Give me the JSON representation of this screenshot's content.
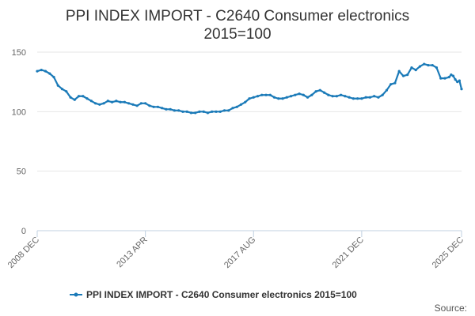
{
  "chart_data": {
    "type": "line",
    "title": "PPI INDEX IMPORT - C2640 Consumer electronics",
    "subtitle": "2015=100",
    "xlabel": "",
    "ylabel": "",
    "ylim": [
      0,
      150
    ],
    "yticks": [
      0,
      50,
      100,
      150
    ],
    "x_range": [
      "2008 DEC",
      "2025 DEC"
    ],
    "x_ticks": [
      "2008 DEC",
      "2013 APR",
      "2017 AUG",
      "2021 DEC",
      "2025 DEC"
    ],
    "grid": "horizontal",
    "legend_position": "bottom",
    "series": [
      {
        "name": "PPI INDEX IMPORT - C2640 Consumer electronics 2015=100",
        "color": "#1a7ab8",
        "points": [
          [
            "2008-12",
            134
          ],
          [
            "2009-02",
            135
          ],
          [
            "2009-04",
            134
          ],
          [
            "2009-06",
            132
          ],
          [
            "2009-08",
            129
          ],
          [
            "2009-10",
            122
          ],
          [
            "2009-12",
            119
          ],
          [
            "2010-02",
            117
          ],
          [
            "2010-04",
            112
          ],
          [
            "2010-06",
            110
          ],
          [
            "2010-08",
            113
          ],
          [
            "2010-10",
            113
          ],
          [
            "2010-12",
            111
          ],
          [
            "2011-02",
            109
          ],
          [
            "2011-04",
            107
          ],
          [
            "2011-06",
            106
          ],
          [
            "2011-08",
            107
          ],
          [
            "2011-10",
            109
          ],
          [
            "2011-12",
            108
          ],
          [
            "2012-02",
            109
          ],
          [
            "2012-04",
            108
          ],
          [
            "2012-06",
            108
          ],
          [
            "2012-08",
            107
          ],
          [
            "2012-10",
            106
          ],
          [
            "2012-12",
            105
          ],
          [
            "2013-02",
            107
          ],
          [
            "2013-04",
            107
          ],
          [
            "2013-06",
            105
          ],
          [
            "2013-08",
            104
          ],
          [
            "2013-10",
            104
          ],
          [
            "2013-12",
            103
          ],
          [
            "2014-02",
            102
          ],
          [
            "2014-04",
            102
          ],
          [
            "2014-06",
            101
          ],
          [
            "2014-08",
            101
          ],
          [
            "2014-10",
            100
          ],
          [
            "2014-12",
            100
          ],
          [
            "2015-02",
            99
          ],
          [
            "2015-04",
            99
          ],
          [
            "2015-06",
            100
          ],
          [
            "2015-08",
            100
          ],
          [
            "2015-10",
            99
          ],
          [
            "2015-12",
            100
          ],
          [
            "2016-02",
            100
          ],
          [
            "2016-04",
            100
          ],
          [
            "2016-06",
            101
          ],
          [
            "2016-08",
            101
          ],
          [
            "2016-10",
            103
          ],
          [
            "2016-12",
            104
          ],
          [
            "2017-02",
            106
          ],
          [
            "2017-04",
            108
          ],
          [
            "2017-06",
            111
          ],
          [
            "2017-08",
            112
          ],
          [
            "2017-10",
            113
          ],
          [
            "2017-12",
            114
          ],
          [
            "2018-02",
            114
          ],
          [
            "2018-04",
            114
          ],
          [
            "2018-06",
            112
          ],
          [
            "2018-08",
            111
          ],
          [
            "2018-10",
            111
          ],
          [
            "2018-12",
            112
          ],
          [
            "2019-02",
            113
          ],
          [
            "2019-04",
            114
          ],
          [
            "2019-06",
            115
          ],
          [
            "2019-08",
            114
          ],
          [
            "2019-10",
            112
          ],
          [
            "2019-12",
            114
          ],
          [
            "2020-02",
            117
          ],
          [
            "2020-04",
            118
          ],
          [
            "2020-06",
            116
          ],
          [
            "2020-08",
            114
          ],
          [
            "2020-10",
            113
          ],
          [
            "2020-12",
            113
          ],
          [
            "2021-02",
            114
          ],
          [
            "2021-04",
            113
          ],
          [
            "2021-06",
            112
          ],
          [
            "2021-08",
            111
          ],
          [
            "2021-10",
            111
          ],
          [
            "2021-12",
            111
          ],
          [
            "2022-02",
            112
          ],
          [
            "2022-04",
            112
          ],
          [
            "2022-06",
            113
          ],
          [
            "2022-08",
            112
          ],
          [
            "2022-10",
            114
          ],
          [
            "2022-12",
            118
          ],
          [
            "2023-02",
            123
          ],
          [
            "2023-04",
            124
          ],
          [
            "2023-06",
            134
          ],
          [
            "2023-08",
            130
          ],
          [
            "2023-10",
            131
          ],
          [
            "2023-12",
            137
          ],
          [
            "2024-02",
            135
          ],
          [
            "2024-04",
            138
          ],
          [
            "2024-06",
            140
          ],
          [
            "2024-08",
            139
          ],
          [
            "2024-10",
            139
          ],
          [
            "2024-12",
            137
          ],
          [
            "2025-02",
            128
          ],
          [
            "2025-04",
            128
          ],
          [
            "2025-06",
            129
          ],
          [
            "2025-07",
            131
          ],
          [
            "2025-08",
            130
          ],
          [
            "2025-09",
            127
          ],
          [
            "2025-10",
            125
          ],
          [
            "2025-11",
            126
          ],
          [
            "2025-12",
            119
          ]
        ]
      }
    ]
  },
  "footer": {
    "source_label": "Source:"
  }
}
